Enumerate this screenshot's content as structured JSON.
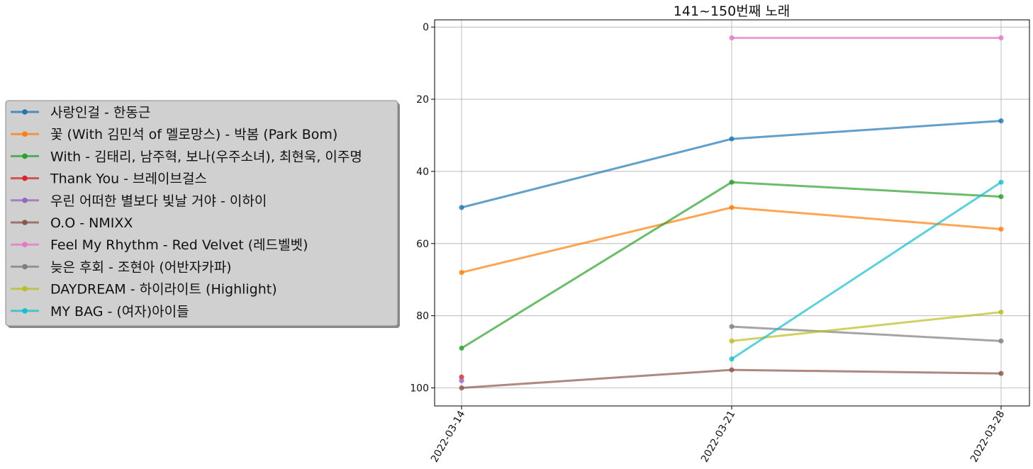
{
  "chart_data": {
    "type": "line",
    "title": "141~150번째 노래",
    "xlabel": "",
    "ylabel": "",
    "categories": [
      "2022-03-14",
      "2022-03-21",
      "2022-03-28"
    ],
    "ylim": [
      105,
      -2
    ],
    "y_inverted": true,
    "yticks": [
      0,
      20,
      40,
      60,
      80,
      100
    ],
    "grid": true,
    "legend_position": "left",
    "series": [
      {
        "name": "사랑인걸 - 한동근",
        "color": "#1f77b4",
        "values": [
          50,
          31,
          26
        ]
      },
      {
        "name": "꽃 (With 김민석 of 멜로망스) - 박봄 (Park Bom)",
        "color": "#ff7f0e",
        "values": [
          68,
          50,
          56
        ]
      },
      {
        "name": "With - 김태리, 남주혁, 보나(우주소녀), 최현욱, 이주명",
        "color": "#2ca02c",
        "values": [
          89,
          43,
          47
        ]
      },
      {
        "name": "Thank You - 브레이브걸스",
        "color": "#d62728",
        "values": [
          97,
          null,
          null
        ]
      },
      {
        "name": "우린 어떠한 별보다 빛날 거야 - 이하이",
        "color": "#9467bd",
        "values": [
          98,
          null,
          null
        ]
      },
      {
        "name": "O.O - NMIXX",
        "color": "#8c564b",
        "values": [
          100,
          95,
          96
        ]
      },
      {
        "name": "Feel My Rhythm - Red Velvet (레드벨벳)",
        "color": "#e377c2",
        "values": [
          null,
          3,
          3
        ]
      },
      {
        "name": "늦은 후회 - 조현아 (어반자카파)",
        "color": "#7f7f7f",
        "values": [
          null,
          83,
          87
        ]
      },
      {
        "name": "DAYDREAM - 하이라이트 (Highlight)",
        "color": "#bcbd22",
        "values": [
          null,
          87,
          79
        ]
      },
      {
        "name": "MY BAG - (여자)아이들",
        "color": "#17becf",
        "values": [
          null,
          92,
          43
        ]
      }
    ]
  }
}
